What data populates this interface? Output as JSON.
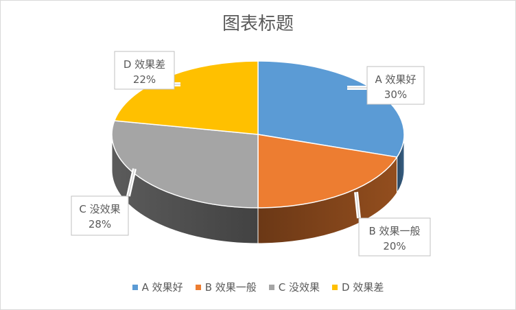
{
  "chart_data": {
    "type": "pie",
    "title": "图表标题",
    "categories": [
      "A 效果好",
      "B 效果一般",
      "C 没效果",
      "D 效果差"
    ],
    "values": [
      30,
      20,
      28,
      22
    ],
    "value_labels": [
      "30%",
      "20%",
      "28%",
      "22%"
    ],
    "colors": [
      "#5b9bd5",
      "#ed7d31",
      "#a5a5a5",
      "#ffc000"
    ],
    "style": "3d",
    "legend_position": "bottom"
  }
}
